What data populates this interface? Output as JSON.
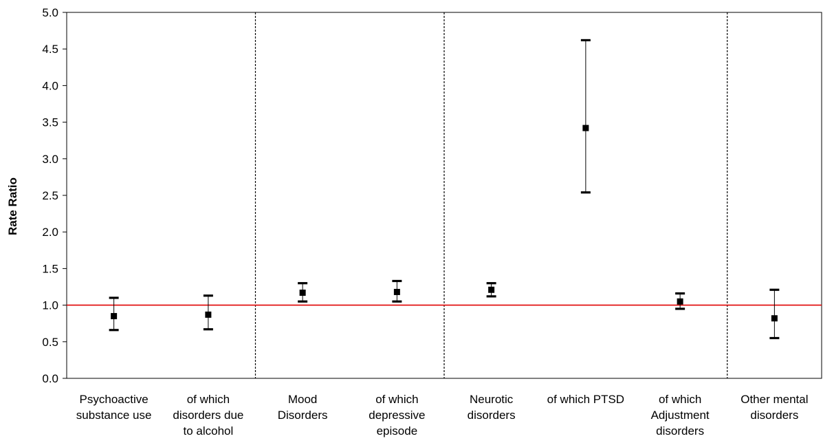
{
  "chart_data": {
    "type": "scatter",
    "ylabel": "Rate Ratio",
    "xlabel": "",
    "ylim": [
      0,
      5
    ],
    "yticks": [
      "0.0",
      "0.5",
      "1.0",
      "1.5",
      "2.0",
      "2.5",
      "3.0",
      "3.5",
      "4.0",
      "4.5",
      "5.0"
    ],
    "reference_line": 1.0,
    "reference_color": "#e00000",
    "categories": [
      [
        "Psychoactive",
        "substance use"
      ],
      [
        "of which",
        "disorders due",
        "to alcohol"
      ],
      [
        "Mood",
        "Disorders"
      ],
      [
        "of which",
        "depressive",
        "episode"
      ],
      [
        "Neurotic",
        "disorders"
      ],
      [
        "of which PTSD"
      ],
      [
        "of which",
        "Adjustment",
        "disorders"
      ],
      [
        "Other mental",
        "disorders"
      ]
    ],
    "values": [
      0.85,
      0.87,
      1.17,
      1.18,
      1.21,
      3.42,
      1.05,
      0.82
    ],
    "lower": [
      0.66,
      0.67,
      1.05,
      1.05,
      1.12,
      2.54,
      0.95,
      0.55
    ],
    "upper": [
      1.1,
      1.13,
      1.3,
      1.33,
      1.3,
      4.62,
      1.16,
      1.21
    ],
    "group_separators_after": [
      2,
      4,
      7
    ],
    "grid": false
  }
}
